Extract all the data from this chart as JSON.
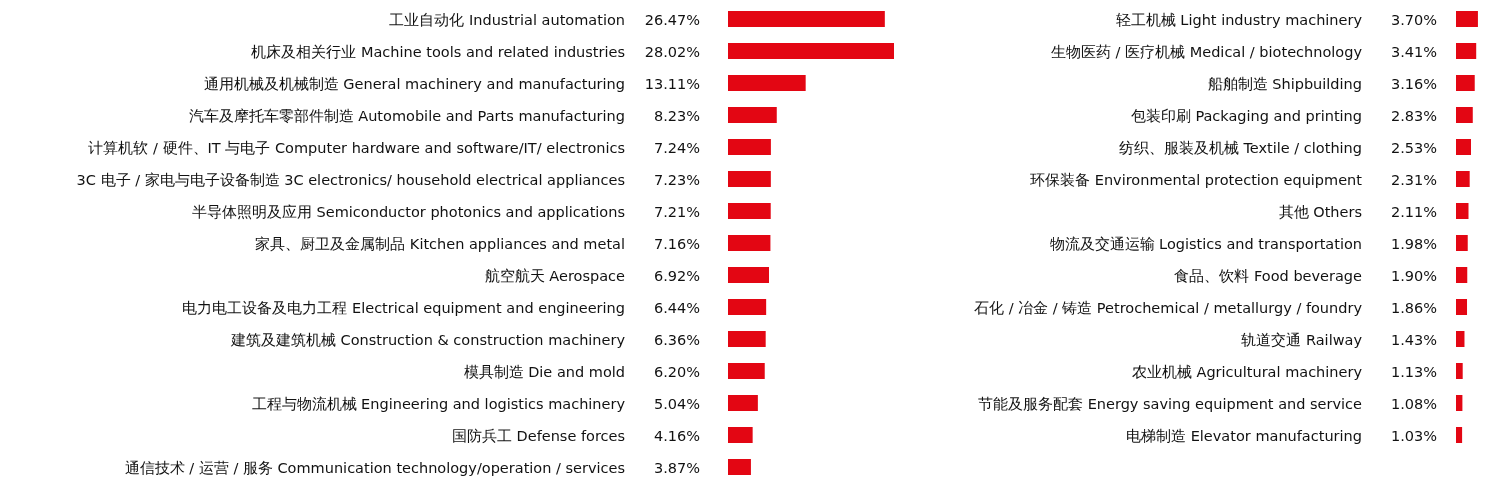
{
  "chart_data": [
    {
      "type": "bar",
      "orientation": "horizontal",
      "color": "#e30613",
      "categories": [
        "工业自动化 Industrial automation",
        "机床及相关行业 Machine tools and related industries",
        "通用机械及机械制造 General machinery and manufacturing",
        "汽车及摩托车零部件制造 Automobile and Parts manufacturing",
        "计算机软 / 硬件、IT 与电子 Computer hardware and software/IT/ electronics",
        "3C 电子 / 家电与电子设备制造 3C electronics/ household electrical appliances",
        "半导体照明及应用 Semiconductor photonics and applications",
        "家具、厨卫及金属制品 Kitchen appliances and metal",
        "航空航天 Aerospace",
        "电力电工设备及电力工程 Electrical equipment and engineering",
        "建筑及建筑机械 Construction & construction machinery",
        "模具制造 Die and mold",
        "工程与物流机械 Engineering and logistics machinery",
        "国防兵工 Defense forces",
        "通信技术 / 运营 / 服务 Communication technology/operation / services"
      ],
      "values": [
        26.47,
        28.02,
        13.11,
        8.23,
        7.24,
        7.23,
        7.21,
        7.16,
        6.92,
        6.44,
        6.36,
        6.2,
        5.04,
        4.16,
        3.87
      ],
      "value_labels": [
        "26.47%",
        "28.02%",
        "13.11%",
        "8.23%",
        "7.24%",
        "7.23%",
        "7.21%",
        "7.16%",
        "6.92%",
        "6.44%",
        "6.36%",
        "6.20%",
        "5.04%",
        "4.16%",
        "3.87%"
      ]
    },
    {
      "type": "bar",
      "orientation": "horizontal",
      "color": "#e30613",
      "categories": [
        "轻工机械 Light industry machinery",
        "生物医药 / 医疗机械 Medical / biotechnology",
        "船舶制造 Shipbuilding",
        "包装印刷 Packaging and printing",
        "纺织、服装及机械 Textile / clothing",
        "环保装备 Environmental protection equipment",
        "其他 Others",
        "物流及交通运输 Logistics and transportation",
        "食品、饮料 Food beverage",
        "石化 / 冶金 / 铸造 Petrochemical / metallurgy / foundry",
        "轨道交通 Railway",
        "农业机械 Agricultural machinery",
        "节能及服务配套 Energy saving equipment and service",
        "电梯制造 Elevator manufacturing"
      ],
      "values": [
        3.7,
        3.41,
        3.16,
        2.83,
        2.53,
        2.31,
        2.11,
        1.98,
        1.9,
        1.86,
        1.43,
        1.13,
        1.08,
        1.03
      ],
      "value_labels": [
        "3.70%",
        "3.41%",
        "3.16%",
        "2.83%",
        "2.53%",
        "2.31%",
        "2.11%",
        "1.98%",
        "1.90%",
        "1.86%",
        "1.43%",
        "1.13%",
        "1.08%",
        "1.03%"
      ]
    }
  ]
}
